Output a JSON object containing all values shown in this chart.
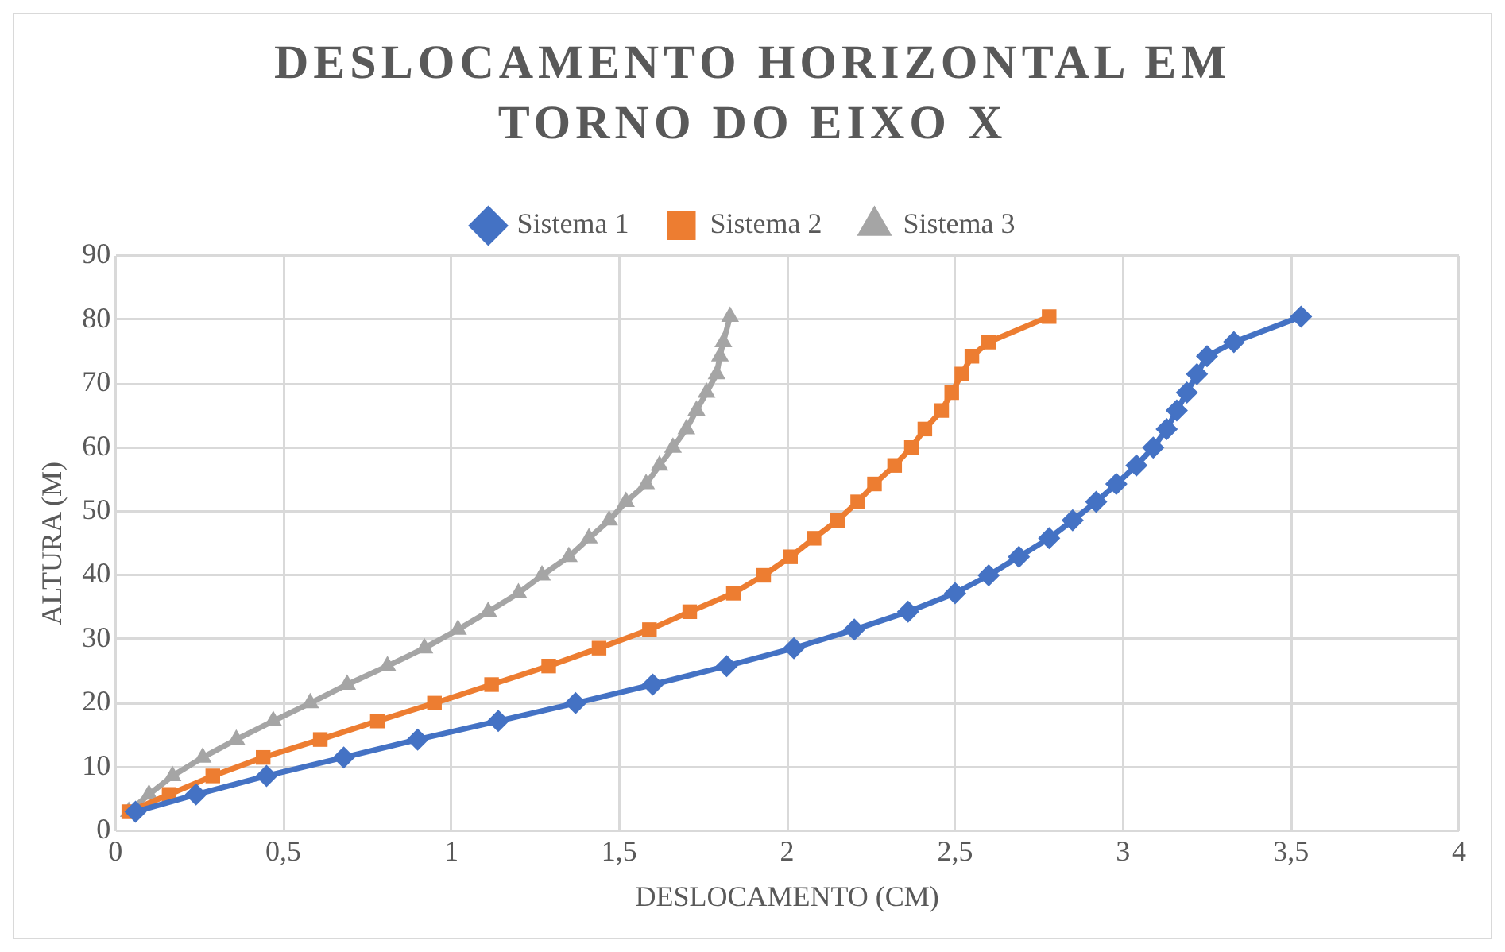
{
  "chart_data": {
    "type": "line",
    "title": "DESLOCAMENTO HORIZONTAL EM TORNO DO EIXO X",
    "xlabel": "DESLOCAMENTO (CM)",
    "ylabel": "ALTURA (M)",
    "xlim": [
      0,
      4
    ],
    "xticks": [
      0,
      {
        "value": 0.5,
        "label": "0,5"
      },
      1,
      {
        "value": 1.5,
        "label": "1,5"
      },
      2,
      {
        "value": 2.5,
        "label": "2,5"
      },
      3,
      {
        "value": 3.5,
        "label": "3,5"
      },
      4
    ],
    "ylim": [
      0,
      90
    ],
    "yticks": [
      0,
      10,
      20,
      30,
      40,
      50,
      60,
      70,
      80,
      90
    ],
    "grid": true,
    "legend": "top",
    "line_style": "solid",
    "series": [
      {
        "name": "Sistema 1",
        "color": "#4472c4",
        "marker": "diamond",
        "x": [
          0.06,
          0.24,
          0.45,
          0.68,
          0.9,
          1.14,
          1.37,
          1.6,
          1.82,
          2.02,
          2.2,
          2.36,
          2.5,
          2.6,
          2.69,
          2.78,
          2.85,
          2.92,
          2.98,
          3.04,
          3.09,
          3.13,
          3.16,
          3.19,
          3.22,
          3.25,
          3.33,
          3.53
        ],
        "values": [
          3,
          5.7,
          8.6,
          11.5,
          14.3,
          17.2,
          20,
          22.9,
          25.8,
          28.6,
          31.5,
          34.3,
          37.2,
          40,
          42.9,
          45.8,
          48.6,
          51.5,
          54.3,
          57.2,
          60,
          62.9,
          65.8,
          68.6,
          71.5,
          74.3,
          76.5,
          80.5
        ]
      },
      {
        "name": "Sistema 2",
        "color": "#ed7d31",
        "marker": "square",
        "x": [
          0.04,
          0.16,
          0.29,
          0.44,
          0.61,
          0.78,
          0.95,
          1.12,
          1.29,
          1.44,
          1.59,
          1.71,
          1.84,
          1.93,
          2.01,
          2.08,
          2.15,
          2.21,
          2.26,
          2.32,
          2.37,
          2.41,
          2.46,
          2.49,
          2.52,
          2.55,
          2.6,
          2.78
        ],
        "values": [
          3,
          5.7,
          8.6,
          11.5,
          14.3,
          17.2,
          20,
          22.9,
          25.8,
          28.6,
          31.5,
          34.3,
          37.2,
          40,
          42.9,
          45.8,
          48.6,
          51.5,
          54.3,
          57.2,
          60,
          62.9,
          65.8,
          68.6,
          71.5,
          74.3,
          76.5,
          80.5
        ]
      },
      {
        "name": "Sistema 3",
        "color": "#a5a5a5",
        "marker": "triangle",
        "x": [
          0.04,
          0.1,
          0.17,
          0.26,
          0.36,
          0.47,
          0.58,
          0.69,
          0.81,
          0.92,
          1.02,
          1.11,
          1.2,
          1.27,
          1.35,
          1.41,
          1.47,
          1.52,
          1.58,
          1.62,
          1.66,
          1.7,
          1.73,
          1.76,
          1.79,
          1.8,
          1.81,
          1.83
        ],
        "values": [
          3,
          5.7,
          8.6,
          11.5,
          14.3,
          17.2,
          20,
          22.9,
          25.8,
          28.6,
          31.5,
          34.3,
          37.2,
          40,
          42.9,
          45.8,
          48.6,
          51.5,
          54.3,
          57.2,
          60,
          62.9,
          65.8,
          68.6,
          71.5,
          74.3,
          76.5,
          80.5
        ]
      }
    ]
  }
}
